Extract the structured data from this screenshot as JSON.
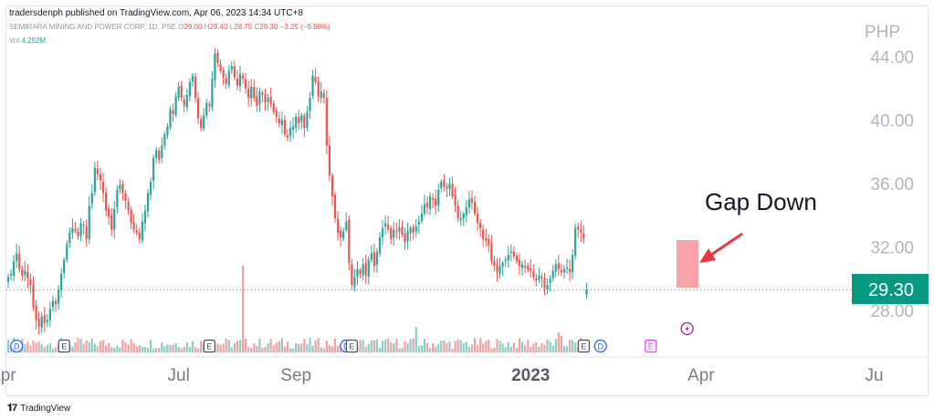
{
  "header": {
    "publisher": "tradersdenph published on TradingView.com, Apr 06, 2023 14:34 UTC+8",
    "symbol": "SEMIRARA MINING AND POWER CORP, 1D, PSE",
    "ohlc": {
      "o_label": "O",
      "o": "29.00",
      "h_label": "H",
      "h": "29.40",
      "l_label": "L",
      "l": "28.75",
      "c_label": "C",
      "c": "29.30",
      "change": "−3.25 (−9.98%)"
    },
    "vol_label": "Vol",
    "vol": "4.252M"
  },
  "footer": {
    "logo_text": "TradingView"
  },
  "chart_data": {
    "type": "candlestick",
    "currency": "PHP",
    "last_price": "29.30",
    "last_price_value": 29.3,
    "ylim": [
      26,
      46
    ],
    "price_ticks": [
      "44.00",
      "40.00",
      "36.00",
      "32.00",
      "28.00"
    ],
    "price_tick_values": [
      44,
      40,
      36,
      32,
      28
    ],
    "time_ticks": [
      {
        "label": "Apr",
        "bar": -2,
        "bold": false
      },
      {
        "label": "Jul",
        "bar": 61,
        "bold": false
      },
      {
        "label": "Sep",
        "bar": 103,
        "bold": false
      },
      {
        "label": "2023",
        "bar": 187,
        "bold": true
      },
      {
        "label": "Apr",
        "bar": 248,
        "bold": false
      },
      {
        "label": "Ju",
        "bar": 310,
        "bold": false
      }
    ],
    "closes": [
      30.1,
      30.3,
      31.1,
      31.6,
      30.6,
      30.2,
      30.5,
      30.0,
      29.6,
      28.2,
      27.4,
      27.0,
      27.6,
      27.2,
      27.4,
      28.1,
      28.6,
      28.4,
      29.3,
      30.3,
      31.2,
      32.2,
      32.9,
      33.2,
      33.0,
      32.7,
      33.5,
      33.4,
      32.5,
      34.6,
      35.4,
      37.0,
      36.6,
      36.2,
      35.4,
      34.3,
      33.9,
      33.1,
      34.4,
      35.6,
      35.9,
      35.4,
      34.9,
      34.3,
      33.5,
      33.1,
      32.9,
      32.5,
      33.6,
      34.3,
      35.4,
      36.1,
      37.6,
      38.1,
      37.5,
      38.4,
      39.1,
      39.6,
      40.7,
      40.4,
      41.5,
      42.1,
      41.4,
      40.9,
      41.6,
      42.4,
      42.8,
      41.4,
      40.1,
      39.5,
      40.3,
      41.1,
      40.9,
      42.6,
      44.2,
      43.6,
      43.1,
      42.7,
      42.3,
      43.1,
      43.4,
      42.7,
      42.2,
      42.9,
      42.6,
      42.0,
      41.4,
      42.1,
      41.4,
      40.9,
      41.8,
      41.6,
      41.1,
      41.4,
      41.0,
      40.5,
      40.2,
      39.8,
      40.0,
      39.1,
      38.9,
      39.5,
      39.6,
      40.2,
      39.8,
      40.3,
      39.5,
      40.5,
      41.4,
      42.8,
      42.4,
      41.5,
      41.8,
      41.4,
      38.4,
      36.5,
      35.2,
      33.8,
      32.9,
      32.6,
      33.0,
      33.6,
      31.0,
      29.6,
      30.1,
      30.6,
      30.3,
      30.9,
      30.2,
      31.2,
      31.6,
      30.8,
      31.7,
      32.6,
      33.2,
      33.5,
      33.1,
      32.5,
      33.1,
      33.0,
      33.2,
      32.8,
      32.3,
      33.0,
      33.2,
      32.9,
      33.3,
      33.6,
      34.1,
      34.7,
      34.5,
      35.2,
      35.0,
      34.6,
      35.6,
      36.1,
      35.8,
      35.7,
      36.0,
      35.2,
      34.6,
      33.8,
      33.8,
      34.1,
      34.5,
      35.0,
      34.8,
      34.1,
      33.5,
      33.2,
      32.5,
      32.4,
      32.1,
      31.1,
      30.8,
      30.4,
      30.8,
      31.0,
      31.2,
      31.5,
      31.7,
      31.4,
      31.1,
      30.8,
      30.9,
      30.7,
      30.6,
      30.5,
      30.1,
      29.9,
      30.2,
      30.0,
      29.4,
      29.6,
      30.0,
      30.5,
      30.9,
      30.6,
      30.4,
      30.6,
      30.7,
      30.4,
      31.5,
      33.2,
      33.1,
      32.9,
      32.55,
      29.3
    ],
    "annotations": [
      {
        "text": "Gap Down"
      }
    ],
    "event_markers": [
      {
        "type": "D",
        "bar": 3
      },
      {
        "type": "E",
        "bar": 20
      },
      {
        "type": "E",
        "bar": 72
      },
      {
        "type": "D",
        "bar": 121
      },
      {
        "type": "E",
        "bar": 123
      },
      {
        "type": "E",
        "bar": 206
      },
      {
        "type": "D",
        "bar": 212
      },
      {
        "type": "E",
        "bar": 230
      }
    ],
    "colors": {
      "up": "#26a69a",
      "down": "#ef5350",
      "price_label_bg": "#089981",
      "gap_box": "#f7a3a7",
      "arrow": "#ef3340"
    }
  }
}
